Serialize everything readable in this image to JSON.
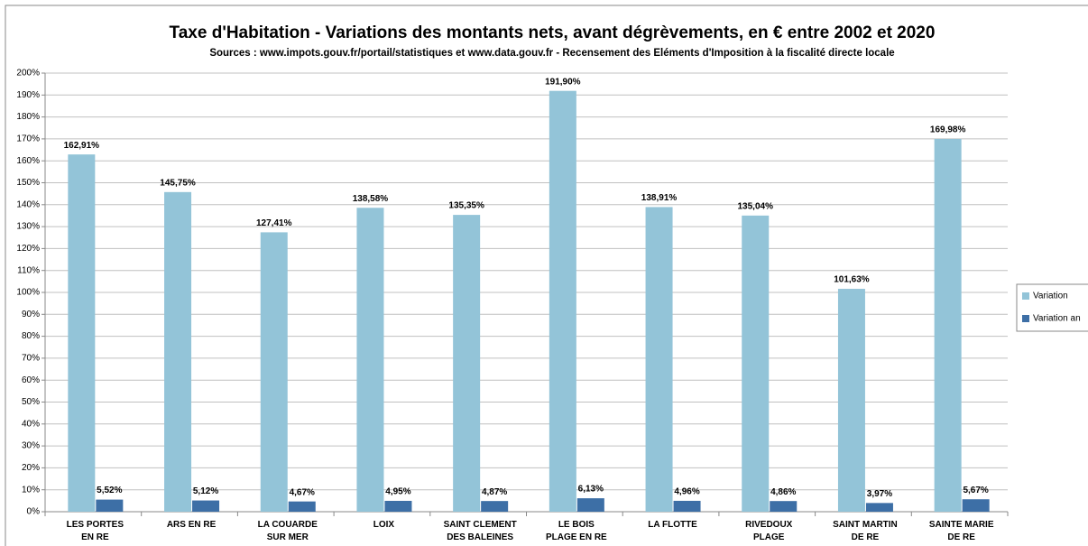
{
  "chart_data": {
    "type": "bar",
    "title": "Taxe d'Habitation - Variations des montants nets, avant dégrèvements, en € entre 2002 et 2020",
    "subtitle": "Sources : www.impots.gouv.fr/portail/statistiques et www.data.gouv.fr - Recensement des Eléments d'Imposition à la fiscalité directe locale",
    "categories": [
      "LES PORTES\nEN RE",
      "ARS EN RE",
      "LA COUARDE\nSUR MER",
      "LOIX",
      "SAINT CLEMENT\nDES BALEINES",
      "LE BOIS\nPLAGE EN RE",
      "LA FLOTTE",
      "RIVEDOUX\nPLAGE",
      "SAINT MARTIN\nDE RE",
      "SAINTE MARIE\nDE RE"
    ],
    "series": [
      {
        "name": "Variation",
        "color": "#93c4d8",
        "values": [
          162.91,
          145.75,
          127.41,
          138.58,
          135.35,
          191.9,
          138.91,
          135.04,
          101.63,
          169.98
        ],
        "value_labels": [
          "162,91%",
          "145,75%",
          "127,41%",
          "138,58%",
          "135,35%",
          "191,90%",
          "138,91%",
          "135,04%",
          "101,63%",
          "169,98%"
        ]
      },
      {
        "name": "Variation an",
        "color": "#3d6fa6",
        "values": [
          5.52,
          5.12,
          4.67,
          4.95,
          4.87,
          6.13,
          4.96,
          4.86,
          3.97,
          5.67
        ],
        "value_labels": [
          "5,52%",
          "5,12%",
          "4,67%",
          "4,95%",
          "4,87%",
          "6,13%",
          "4,96%",
          "4,86%",
          "3,97%",
          "5,67%"
        ]
      }
    ],
    "ylim": [
      0,
      200
    ],
    "yticks": [
      {
        "value": 0,
        "label": "0%"
      },
      {
        "value": 10,
        "label": "10%"
      },
      {
        "value": 20,
        "label": "20%"
      },
      {
        "value": 30,
        "label": "30%"
      },
      {
        "value": 40,
        "label": "40%"
      },
      {
        "value": 50,
        "label": "50%"
      },
      {
        "value": 60,
        "label": "60%"
      },
      {
        "value": 70,
        "label": "70%"
      },
      {
        "value": 80,
        "label": "80%"
      },
      {
        "value": 90,
        "label": "90%"
      },
      {
        "value": 100,
        "label": "100%"
      },
      {
        "value": 110,
        "label": "110%"
      },
      {
        "value": 120,
        "label": "120%"
      },
      {
        "value": 130,
        "label": "130%"
      },
      {
        "value": 140,
        "label": "140%"
      },
      {
        "value": 150,
        "label": "150%"
      },
      {
        "value": 160,
        "label": "160%"
      },
      {
        "value": 170,
        "label": "170%"
      },
      {
        "value": 180,
        "label": "180%"
      },
      {
        "value": 190,
        "label": "190%"
      },
      {
        "value": 200,
        "label": "200%"
      }
    ],
    "grid": true,
    "legend": "right"
  }
}
